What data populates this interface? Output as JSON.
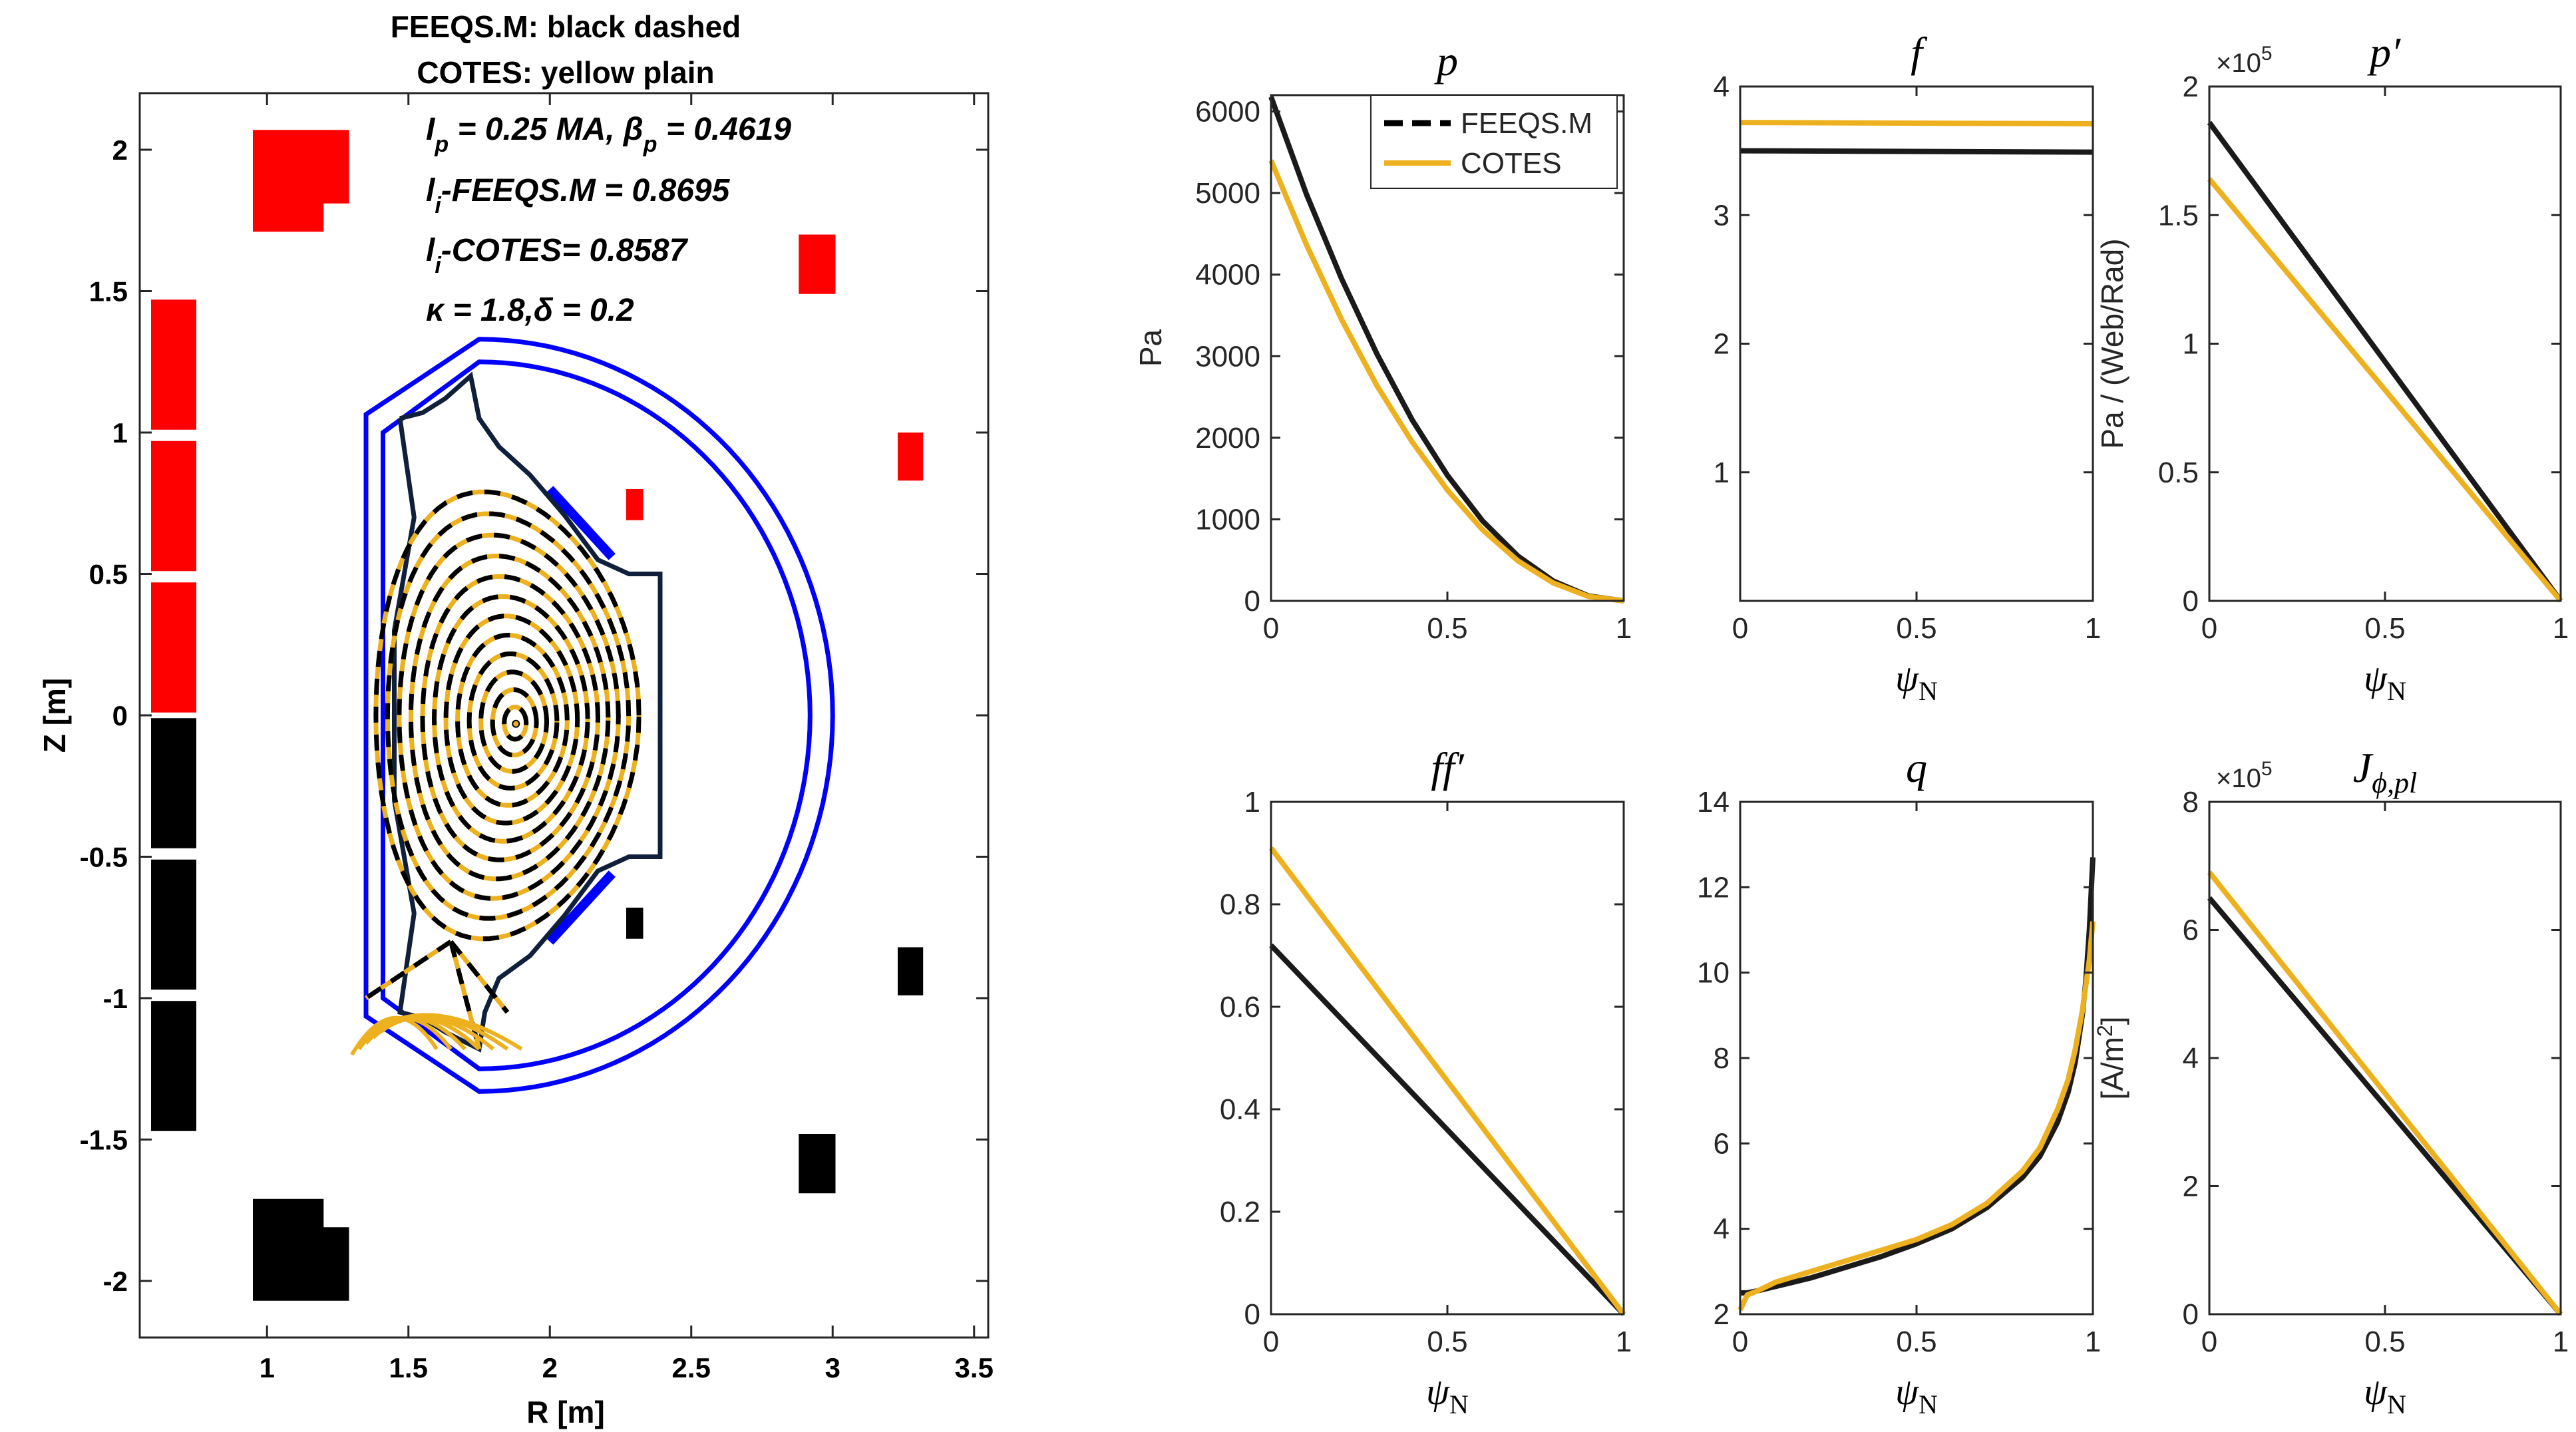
{
  "figure": {
    "colors": {
      "feeqs": "#000000",
      "cotes": "#EDB120",
      "wall": "#0000FF",
      "coil_upper": "#FF0000",
      "coil_lower": "#000000",
      "axis": "#262626"
    }
  },
  "equilibrium": {
    "title_line1": "FEEQS.M: black dashed",
    "title_line2": "COTES: yellow plain",
    "annotations": {
      "ip_prefix": "I",
      "ip_sub": "p",
      "ip_text": " = 0.25 MA, β",
      "beta_sub": "p",
      "beta_text": " = 0.4619",
      "li1_prefix": "l",
      "li1_sub": "i",
      "li1_text": "-FEEQS.M  = 0.8695",
      "li2_prefix": "l",
      "li2_sub": "i",
      "li2_text": "-COTES= 0.8587",
      "kappa_text": "κ  = 1.8,δ = 0.2"
    },
    "xlabel": "R [m]",
    "ylabel": "Z [m]",
    "xlim": [
      0.55,
      3.55
    ],
    "ylim": [
      -2.2,
      2.2
    ],
    "xticks": [
      "1",
      "1.5",
      "2",
      "2.5",
      "3",
      "3.5"
    ],
    "yticks": [
      "2",
      "1.5",
      "1",
      "0.5",
      "0",
      "-0.5",
      "-1",
      "-1.5",
      "-2"
    ],
    "magnetic_axis": [
      1.88,
      -0.03
    ],
    "coils_upper": [
      [
        [
          0.95,
          1.71
        ],
        [
          0.95,
          2.07
        ],
        [
          1.29,
          2.07
        ],
        [
          1.29,
          1.81
        ],
        [
          1.2,
          1.81
        ],
        [
          1.2,
          1.71
        ]
      ],
      [
        [
          0.59,
          1.01
        ],
        [
          0.59,
          1.47
        ],
        [
          0.75,
          1.47
        ],
        [
          0.75,
          1.01
        ]
      ],
      [
        [
          0.59,
          0.51
        ],
        [
          0.59,
          0.97
        ],
        [
          0.75,
          0.97
        ],
        [
          0.75,
          0.51
        ]
      ],
      [
        [
          0.59,
          0.01
        ],
        [
          0.59,
          0.47
        ],
        [
          0.75,
          0.47
        ],
        [
          0.75,
          0.01
        ]
      ],
      [
        [
          2.88,
          1.49
        ],
        [
          2.88,
          1.7
        ],
        [
          3.01,
          1.7
        ],
        [
          3.01,
          1.49
        ]
      ],
      [
        [
          3.23,
          0.83
        ],
        [
          3.23,
          1.0
        ],
        [
          3.32,
          1.0
        ],
        [
          3.32,
          0.83
        ]
      ],
      [
        [
          2.27,
          0.69
        ],
        [
          2.27,
          0.8
        ],
        [
          2.33,
          0.8
        ],
        [
          2.33,
          0.69
        ]
      ]
    ],
    "coils_lower": [
      [
        [
          0.95,
          -2.07
        ],
        [
          0.95,
          -1.71
        ],
        [
          1.2,
          -1.71
        ],
        [
          1.2,
          -1.81
        ],
        [
          1.29,
          -1.81
        ],
        [
          1.29,
          -2.07
        ]
      ],
      [
        [
          0.59,
          -1.47
        ],
        [
          0.59,
          -1.01
        ],
        [
          0.75,
          -1.01
        ],
        [
          0.75,
          -1.47
        ]
      ],
      [
        [
          0.59,
          -0.97
        ],
        [
          0.59,
          -0.51
        ],
        [
          0.75,
          -0.51
        ],
        [
          0.75,
          -0.97
        ]
      ],
      [
        [
          0.59,
          -0.47
        ],
        [
          0.59,
          -0.01
        ],
        [
          0.75,
          -0.01
        ],
        [
          0.75,
          -0.47
        ]
      ],
      [
        [
          2.88,
          -1.69
        ],
        [
          2.88,
          -1.48
        ],
        [
          3.01,
          -1.48
        ],
        [
          3.01,
          -1.69
        ]
      ],
      [
        [
          3.23,
          -0.99
        ],
        [
          3.23,
          -0.82
        ],
        [
          3.32,
          -0.82
        ],
        [
          3.32,
          -0.99
        ]
      ],
      [
        [
          2.27,
          -0.79
        ],
        [
          2.27,
          -0.68
        ],
        [
          2.33,
          -0.68
        ],
        [
          2.33,
          -0.79
        ]
      ]
    ],
    "limiter": [
      [
        1.47,
        1.05
      ],
      [
        1.55,
        1.07
      ],
      [
        1.63,
        1.12
      ],
      [
        1.72,
        1.2
      ],
      [
        1.75,
        1.05
      ],
      [
        1.82,
        0.95
      ],
      [
        1.93,
        0.85
      ],
      [
        2.05,
        0.71
      ],
      [
        2.17,
        0.55
      ],
      [
        2.28,
        0.5
      ],
      [
        2.39,
        0.5
      ],
      [
        2.39,
        -0.5
      ],
      [
        2.28,
        -0.5
      ],
      [
        2.17,
        -0.55
      ],
      [
        2.05,
        -0.71
      ],
      [
        1.93,
        -0.85
      ],
      [
        1.82,
        -0.93
      ],
      [
        1.77,
        -1.05
      ],
      [
        1.75,
        -1.18
      ],
      [
        1.63,
        -1.12
      ],
      [
        1.55,
        -1.07
      ],
      [
        1.47,
        -1.05
      ],
      [
        1.52,
        -0.7
      ],
      [
        1.45,
        -0.3
      ],
      [
        1.45,
        0.3
      ],
      [
        1.52,
        0.7
      ],
      [
        1.47,
        1.05
      ]
    ],
    "chart_data": {
      "type": "scatter",
      "xlabel": "R [m]",
      "ylabel": "Z [m]",
      "xlim": [
        0.55,
        3.55
      ],
      "ylim": [
        -2.2,
        2.2
      ],
      "grid": false,
      "magnetic_axis": [
        1.88,
        -0.03
      ]
    }
  },
  "profiles": {
    "legend": {
      "feeqs": "FEEQS.M",
      "cotes": "COTES"
    },
    "panels": [
      {
        "title": "p",
        "ylabel": "Pa",
        "xlabel": "",
        "ylim": [
          0,
          6200
        ],
        "yticks": [
          0,
          1000,
          2000,
          3000,
          4000,
          5000,
          6000
        ],
        "ytick_labels": [
          "0",
          "1000",
          "2000",
          "3000",
          "4000",
          "5000",
          "6000"
        ],
        "xticks": [
          0,
          0.5,
          1
        ],
        "xtick_labels": [
          "0",
          "0.5",
          "1"
        ],
        "exponent": "",
        "x": [
          0,
          0.1,
          0.2,
          0.3,
          0.4,
          0.5,
          0.6,
          0.7,
          0.8,
          0.9,
          1.0
        ],
        "feeqs": [
          6180,
          4990,
          3950,
          3030,
          2220,
          1540,
          980,
          550,
          245,
          60,
          0
        ],
        "cotes": [
          5400,
          4370,
          3450,
          2640,
          1950,
          1360,
          870,
          490,
          220,
          55,
          0
        ]
      },
      {
        "title": "f",
        "ylabel": "",
        "xlabel": "ψ",
        "xlabel_sub": "N",
        "ylim": [
          0,
          4
        ],
        "yticks": [
          1,
          2,
          3,
          4
        ],
        "ytick_labels": [
          "1",
          "2",
          "3",
          "4"
        ],
        "xticks": [
          0,
          0.5,
          1
        ],
        "xtick_labels": [
          "0",
          "0.5",
          "1"
        ],
        "exponent": "",
        "x": [
          0,
          1.0
        ],
        "feeqs": [
          3.5,
          3.49
        ],
        "cotes": [
          3.72,
          3.71
        ]
      },
      {
        "title": "p′",
        "ylabel": "Pa / (Web/Rad)",
        "xlabel": "ψ",
        "xlabel_sub": "N",
        "ylim": [
          0,
          2
        ],
        "yticks": [
          0,
          0.5,
          1,
          1.5,
          2
        ],
        "ytick_labels": [
          "0",
          "0.5",
          "1",
          "1.5",
          "2"
        ],
        "xticks": [
          0,
          0.5,
          1
        ],
        "xtick_labels": [
          "0",
          "0.5",
          "1"
        ],
        "exponent": "×10",
        "exponent_power": "5",
        "x": [
          0,
          1.0
        ],
        "feeqs": [
          1.86,
          0
        ],
        "cotes": [
          1.64,
          0
        ]
      },
      {
        "title": "ff′",
        "ylabel": "",
        "xlabel": "ψ",
        "xlabel_sub": "N",
        "ylim": [
          0,
          1
        ],
        "yticks": [
          0,
          0.2,
          0.4,
          0.6,
          0.8,
          1
        ],
        "ytick_labels": [
          "0",
          "0.2",
          "0.4",
          "0.6",
          "0.8",
          "1"
        ],
        "xticks": [
          0,
          0.5,
          1
        ],
        "xtick_labels": [
          "0",
          "0.5",
          "1"
        ],
        "exponent": "",
        "x": [
          0,
          1.0
        ],
        "feeqs": [
          0.72,
          0
        ],
        "cotes": [
          0.91,
          0
        ]
      },
      {
        "title": "q",
        "ylabel": "",
        "xlabel": "ψ",
        "xlabel_sub": "N",
        "ylim": [
          2,
          14
        ],
        "yticks": [
          2,
          4,
          6,
          8,
          10,
          12,
          14
        ],
        "ytick_labels": [
          "2",
          "4",
          "6",
          "8",
          "10",
          "12",
          "14"
        ],
        "xticks": [
          0,
          0.5,
          1
        ],
        "xtick_labels": [
          "0",
          "0.5",
          "1"
        ],
        "exponent": "",
        "x": [
          0,
          0.02,
          0.05,
          0.1,
          0.2,
          0.3,
          0.4,
          0.5,
          0.6,
          0.7,
          0.8,
          0.85,
          0.9,
          0.93,
          0.95,
          0.97,
          0.98,
          0.99,
          1.0
        ],
        "feeqs": [
          2.5,
          2.5,
          2.55,
          2.65,
          2.85,
          3.1,
          3.35,
          3.65,
          4.0,
          4.5,
          5.2,
          5.7,
          6.5,
          7.2,
          7.9,
          9.0,
          9.8,
          11.0,
          12.7
        ],
        "cotes": [
          2.1,
          2.45,
          2.55,
          2.75,
          3.0,
          3.25,
          3.5,
          3.75,
          4.1,
          4.6,
          5.35,
          5.9,
          6.8,
          7.5,
          8.2,
          9.1,
          9.7,
          10.3,
          11.2
        ]
      },
      {
        "title": "J",
        "title_sub": "ϕ,pl",
        "ylabel": "[A/m",
        "ylabel_sup": "2",
        "ylabel_end": "]",
        "xlabel": "ψ",
        "xlabel_sub": "N",
        "ylim": [
          0,
          8
        ],
        "yticks": [
          0,
          2,
          4,
          6,
          8
        ],
        "ytick_labels": [
          "0",
          "2",
          "4",
          "6",
          "8"
        ],
        "xticks": [
          0,
          0.5,
          1
        ],
        "xtick_labels": [
          "0",
          "0.5",
          "1"
        ],
        "exponent": "×10",
        "exponent_power": "5",
        "x": [
          0,
          1.0
        ],
        "feeqs": [
          6.5,
          0
        ],
        "cotes": [
          6.9,
          0
        ]
      }
    ],
    "chart_data": [
      {
        "type": "line",
        "title": "p",
        "ylabel": "Pa",
        "xlabel": "",
        "ylim": [
          0,
          6200
        ],
        "x": [
          0,
          0.1,
          0.2,
          0.3,
          0.4,
          0.5,
          0.6,
          0.7,
          0.8,
          0.9,
          1.0
        ],
        "series": [
          {
            "name": "FEEQS.M",
            "values": [
              6180,
              4990,
              3950,
              3030,
              2220,
              1540,
              980,
              550,
              245,
              60,
              0
            ]
          },
          {
            "name": "COTES",
            "values": [
              5400,
              4370,
              3450,
              2640,
              1950,
              1360,
              870,
              490,
              220,
              55,
              0
            ]
          }
        ]
      },
      {
        "type": "line",
        "title": "f",
        "xlabel": "ψN",
        "ylim": [
          0,
          4
        ],
        "x": [
          0,
          1.0
        ],
        "series": [
          {
            "name": "FEEQS.M",
            "values": [
              3.5,
              3.49
            ]
          },
          {
            "name": "COTES",
            "values": [
              3.72,
              3.71
            ]
          }
        ]
      },
      {
        "type": "line",
        "title": "p′",
        "ylabel": "Pa / (Web/Rad)",
        "xlabel": "ψN",
        "ylim": [
          0,
          200000
        ],
        "x": [
          0,
          1.0
        ],
        "series": [
          {
            "name": "FEEQS.M",
            "values": [
              186000,
              0
            ]
          },
          {
            "name": "COTES",
            "values": [
              164000,
              0
            ]
          }
        ]
      },
      {
        "type": "line",
        "title": "ff′",
        "xlabel": "ψN",
        "ylim": [
          0,
          1
        ],
        "x": [
          0,
          1.0
        ],
        "series": [
          {
            "name": "FEEQS.M",
            "values": [
              0.72,
              0
            ]
          },
          {
            "name": "COTES",
            "values": [
              0.91,
              0
            ]
          }
        ]
      },
      {
        "type": "line",
        "title": "q",
        "xlabel": "ψN",
        "ylim": [
          2,
          14
        ],
        "x": [
          0,
          0.02,
          0.05,
          0.1,
          0.2,
          0.3,
          0.4,
          0.5,
          0.6,
          0.7,
          0.8,
          0.85,
          0.9,
          0.93,
          0.95,
          0.97,
          0.98,
          0.99,
          1.0
        ],
        "series": [
          {
            "name": "FEEQS.M",
            "values": [
              2.5,
              2.5,
              2.55,
              2.65,
              2.85,
              3.1,
              3.35,
              3.65,
              4.0,
              4.5,
              5.2,
              5.7,
              6.5,
              7.2,
              7.9,
              9.0,
              9.8,
              11.0,
              12.7
            ]
          },
          {
            "name": "COTES",
            "values": [
              2.1,
              2.45,
              2.55,
              2.75,
              3.0,
              3.25,
              3.5,
              3.75,
              4.1,
              4.6,
              5.35,
              5.9,
              6.8,
              7.5,
              8.2,
              9.1,
              9.7,
              10.3,
              11.2
            ]
          }
        ]
      },
      {
        "type": "line",
        "title": "Jϕ,pl",
        "ylabel": "[A/m2]",
        "xlabel": "ψN",
        "ylim": [
          0,
          800000
        ],
        "x": [
          0,
          1.0
        ],
        "series": [
          {
            "name": "FEEQS.M",
            "values": [
              650000,
              0
            ]
          },
          {
            "name": "COTES",
            "values": [
              690000,
              0
            ]
          }
        ]
      }
    ]
  }
}
